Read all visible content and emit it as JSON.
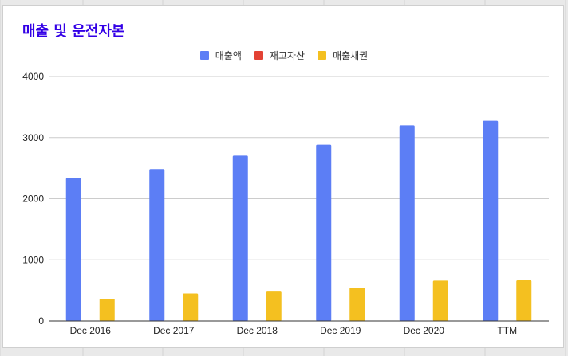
{
  "chart_data": {
    "type": "bar",
    "title": "매출 및 운전자본",
    "categories": [
      "Dec 2016",
      "Dec 2017",
      "Dec 2018",
      "Dec 2019",
      "Dec 2020",
      "TTM"
    ],
    "series": [
      {
        "name": "매출액",
        "color": "#5c7ef5",
        "values": [
          2340,
          2485,
          2705,
          2885,
          3200,
          3275
        ]
      },
      {
        "name": "재고자산",
        "color": "#e34234",
        "values": [
          0,
          0,
          0,
          0,
          0,
          0
        ]
      },
      {
        "name": "매출채권",
        "color": "#f4c020",
        "values": [
          365,
          450,
          480,
          545,
          660,
          665
        ]
      }
    ],
    "ylim": [
      0,
      4000
    ],
    "yticks": [
      0,
      1000,
      2000,
      3000,
      4000
    ],
    "ytick_labels": [
      "0",
      "1000",
      "2000",
      "3000",
      "4000"
    ],
    "grid": true,
    "legend_position": "top-center"
  }
}
